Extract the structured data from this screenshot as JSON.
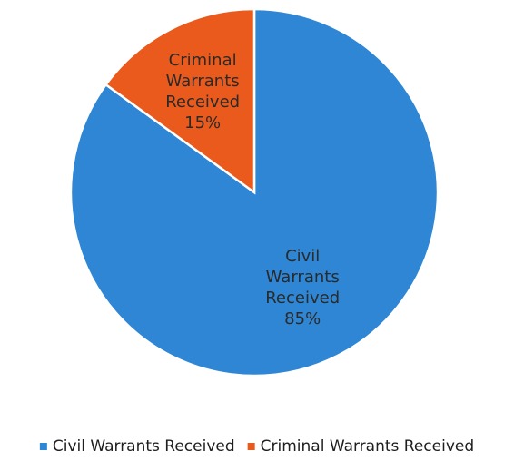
{
  "chart_data": {
    "type": "pie",
    "title": "",
    "slices": [
      {
        "category": "Civil Warrants Received",
        "value": 85,
        "percent_label": "85%",
        "color": "#2e86d4"
      },
      {
        "category": "Criminal Warrants Received",
        "value": 15,
        "percent_label": "15%",
        "color": "#ea5a1c"
      }
    ],
    "legend": {
      "position": "bottom",
      "entries": [
        "Civil Warrants Received",
        "Criminal Warrants Received"
      ]
    },
    "start_angle_deg": 0,
    "direction": "clockwise"
  }
}
